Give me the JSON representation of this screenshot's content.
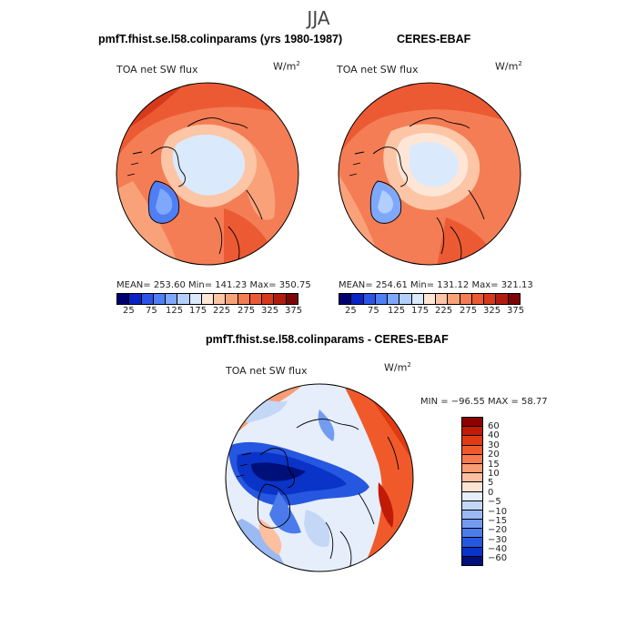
{
  "figure": {
    "season": "JJA"
  },
  "panels": [
    {
      "title": "pmfT.fhist.se.l58.colinparams (yrs 1980-1987)",
      "variable": "TOA net SW flux",
      "units": "W/m",
      "units_exp": "2",
      "stats": "MEAN= 253.60   Min= 141.23   Max= 350.75"
    },
    {
      "title": "CERES-EBAF",
      "variable": "TOA net SW flux",
      "units": "W/m",
      "units_exp": "2",
      "stats": "MEAN= 254.61   Min= 131.12   Max= 321.13"
    },
    {
      "title": "pmfT.fhist.se.l58.colinparams - CERES-EBAF",
      "variable": "TOA net SW flux",
      "units": "W/m",
      "units_exp": "2",
      "stats": "MIN = −96.55 MAX =  58.77"
    }
  ],
  "chart_data": [
    {
      "type": "heatmap",
      "title": "pmfT.fhist.se.l58.colinparams (yrs 1980-1987)",
      "projection": "north-polar-stereographic",
      "variable": "TOA net SW flux",
      "units": "W/m2",
      "mean": 253.6,
      "min": 141.23,
      "max": 350.75,
      "colorbar_ticks": [
        "25",
        "75",
        "125",
        "175",
        "225",
        "275",
        "325",
        "375"
      ],
      "colorbar_colors": [
        "#00006e",
        "#0a23c4",
        "#2a55e6",
        "#4f7ef5",
        "#7ea8fb",
        "#b2cffc",
        "#dbe9fd",
        "#fde6d6",
        "#fcc5a6",
        "#f9a27a",
        "#f47d55",
        "#ec5a33",
        "#d63a1c",
        "#b01d0e",
        "#7d0505"
      ]
    },
    {
      "type": "heatmap",
      "title": "CERES-EBAF",
      "projection": "north-polar-stereographic",
      "variable": "TOA net SW flux",
      "units": "W/m2",
      "mean": 254.61,
      "min": 131.12,
      "max": 321.13,
      "colorbar_ticks": [
        "25",
        "75",
        "125",
        "175",
        "225",
        "275",
        "325",
        "375"
      ],
      "colorbar_colors": [
        "#00006e",
        "#0a23c4",
        "#2a55e6",
        "#4f7ef5",
        "#7ea8fb",
        "#b2cffc",
        "#dbe9fd",
        "#fde6d6",
        "#fcc5a6",
        "#f9a27a",
        "#f47d55",
        "#ec5a33",
        "#d63a1c",
        "#b01d0e",
        "#7d0505"
      ]
    },
    {
      "type": "heatmap",
      "title": "pmfT.fhist.se.l58.colinparams - CERES-EBAF",
      "projection": "north-polar-stereographic",
      "variable": "TOA net SW flux",
      "units": "W/m2",
      "min": -96.55,
      "max": 58.77,
      "colorbar_ticks": [
        "60",
        "40",
        "30",
        "20",
        "15",
        "10",
        "5",
        "0",
        "−5",
        "−10",
        "−15",
        "−20",
        "−30",
        "−40",
        "−60"
      ],
      "colorbar_colors": [
        "#8c0000",
        "#c11a06",
        "#e03a12",
        "#f0592a",
        "#f57a4c",
        "#f99c74",
        "#fcbfa0",
        "#fde3d2",
        "#e6eefb",
        "#c4d7f7",
        "#9bbaf3",
        "#739bef",
        "#4b7beb",
        "#2657e0",
        "#0a34c8",
        "#00107a"
      ]
    }
  ]
}
